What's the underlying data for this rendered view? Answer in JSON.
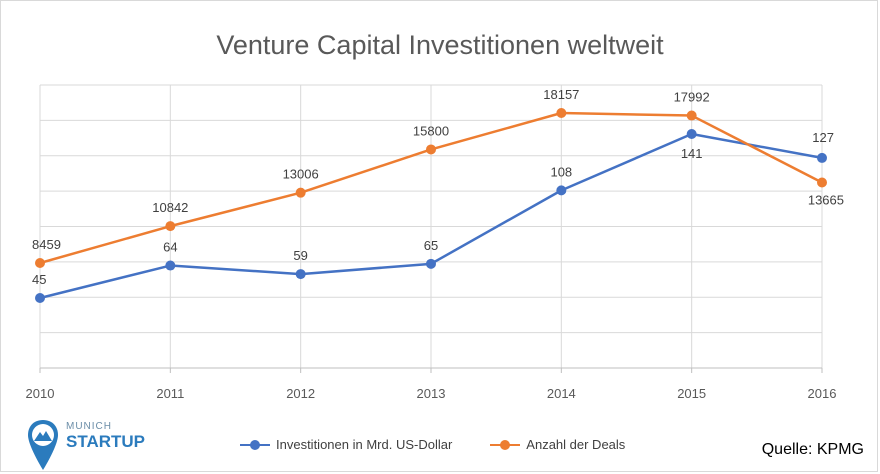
{
  "chart_data": {
    "type": "line",
    "title": "Venture Capital Investitionen weltweit",
    "categories": [
      "2010",
      "2011",
      "2012",
      "2013",
      "2014",
      "2015",
      "2016"
    ],
    "series": [
      {
        "name": "Investitionen in Mrd. US-Dollar",
        "color": "#4472c4",
        "values": [
          45,
          64,
          59,
          65,
          108,
          141,
          127
        ],
        "labels": [
          "45",
          "64",
          "59",
          "65",
          "108",
          "141",
          "127"
        ]
      },
      {
        "name": "Anzahl der Deals",
        "color": "#ed7d31",
        "values": [
          8459,
          10842,
          13006,
          15800,
          18157,
          17992,
          13665
        ],
        "labels": [
          "8459",
          "10842",
          "13006",
          "15800",
          "18157",
          "17992",
          "13665"
        ]
      }
    ],
    "grid": true,
    "legend": "bottom"
  },
  "source": "Quelle: KPMG",
  "logo": {
    "top": "MUNICH",
    "bottom": "STARTUP",
    "icon": "map-pin-mountain-icon",
    "color": "#2b7bbd"
  }
}
